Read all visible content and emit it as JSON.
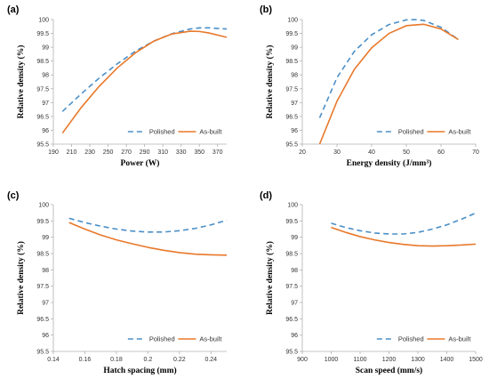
{
  "colors": {
    "polished": "#4a8fc7",
    "as_built": "#e8782a",
    "axis": "#b0b0b0"
  },
  "chart_data": [
    {
      "type": "line",
      "panel_label": "(a)",
      "xlabel": "Power (W)",
      "ylabel": "Relative density (%)",
      "xlim": [
        190,
        380
      ],
      "ylim": [
        95.5,
        100
      ],
      "xticks": [
        190,
        210,
        230,
        250,
        270,
        290,
        310,
        330,
        350,
        370
      ],
      "yticks": [
        95.5,
        96,
        96.5,
        97,
        97.5,
        98,
        98.5,
        99,
        99.5,
        100
      ],
      "ytick_labels": [
        "95.5",
        "96",
        "96.5",
        "97",
        "97.5",
        "98",
        "98.5",
        "99",
        "99.5",
        "100"
      ],
      "legend": {
        "placement": "bottom-right"
      },
      "series": [
        {
          "name": "Polished",
          "style": "dashed",
          "x": [
            200,
            220,
            240,
            260,
            280,
            300,
            320,
            340,
            350,
            360,
            380
          ],
          "y": [
            96.68,
            97.3,
            97.88,
            98.4,
            98.86,
            99.22,
            99.49,
            99.66,
            99.7,
            99.7,
            99.66
          ]
        },
        {
          "name": "As-built",
          "style": "solid",
          "x": [
            200,
            220,
            240,
            260,
            280,
            300,
            320,
            340,
            350,
            360,
            380
          ],
          "y": [
            95.9,
            96.8,
            97.58,
            98.25,
            98.8,
            99.22,
            99.48,
            99.58,
            99.57,
            99.52,
            99.36
          ]
        }
      ]
    },
    {
      "type": "line",
      "panel_label": "(b)",
      "xlabel": "Energy density (J/mm³)",
      "ylabel": "Relative density (%)",
      "xlim": [
        20,
        70
      ],
      "ylim": [
        95.5,
        100
      ],
      "xticks": [
        20,
        30,
        40,
        50,
        60,
        70
      ],
      "yticks": [
        95.5,
        96,
        96.5,
        97,
        97.5,
        98,
        98.5,
        99,
        99.5,
        100
      ],
      "ytick_labels": [
        "95.5",
        "96",
        "96.5",
        "97",
        "97.5",
        "98",
        "98.5",
        "99",
        "99.5",
        "100"
      ],
      "legend": {
        "placement": "bottom-right"
      },
      "series": [
        {
          "name": "Polished",
          "style": "dashed",
          "x": [
            25,
            30,
            35,
            40,
            45,
            50,
            52.5,
            55,
            60,
            65
          ],
          "y": [
            96.45,
            97.9,
            98.85,
            99.45,
            99.82,
            99.99,
            100,
            99.97,
            99.72,
            99.28
          ]
        },
        {
          "name": "As-built",
          "style": "solid",
          "x": [
            25,
            30,
            35,
            40,
            45,
            50,
            55,
            60,
            65
          ],
          "y": [
            95.5,
            97.05,
            98.2,
            98.98,
            99.5,
            99.78,
            99.83,
            99.66,
            99.28
          ]
        }
      ]
    },
    {
      "type": "line",
      "panel_label": "(c)",
      "xlabel": "Hatch spacing (mm)",
      "ylabel": "Relative density (%)",
      "xlim": [
        0.14,
        0.25
      ],
      "ylim": [
        95.5,
        100
      ],
      "xticks": [
        0.14,
        0.16,
        0.18,
        0.2,
        0.22,
        0.24
      ],
      "xtick_labels": [
        "0.14",
        "0.16",
        "0.18",
        "0.2",
        "0.22",
        "0.24"
      ],
      "yticks": [
        95.5,
        96,
        96.5,
        97,
        97.5,
        98,
        98.5,
        99,
        99.5,
        100
      ],
      "ytick_labels": [
        "95.5",
        "96",
        "96.5",
        "97",
        "97.5",
        "98",
        "98.5",
        "99",
        "99.5",
        "100"
      ],
      "legend": {
        "placement": "bottom-right"
      },
      "series": [
        {
          "name": "Polished",
          "style": "dashed",
          "x": [
            0.15,
            0.16,
            0.17,
            0.18,
            0.19,
            0.2,
            0.21,
            0.22,
            0.23,
            0.24,
            0.25
          ],
          "y": [
            99.58,
            99.45,
            99.34,
            99.25,
            99.19,
            99.16,
            99.16,
            99.2,
            99.27,
            99.38,
            99.52
          ]
        },
        {
          "name": "As-built",
          "style": "solid",
          "x": [
            0.15,
            0.16,
            0.17,
            0.18,
            0.19,
            0.2,
            0.21,
            0.22,
            0.23,
            0.24,
            0.25
          ],
          "y": [
            99.45,
            99.25,
            99.07,
            98.92,
            98.8,
            98.69,
            98.6,
            98.53,
            98.48,
            98.46,
            98.45
          ]
        }
      ]
    },
    {
      "type": "line",
      "panel_label": "(d)",
      "xlabel": "Scan speed (mm/s)",
      "ylabel": "Relative density (%)",
      "xlim": [
        900,
        1500
      ],
      "ylim": [
        95.5,
        100
      ],
      "xticks": [
        900,
        1000,
        1100,
        1200,
        1300,
        1400,
        1500
      ],
      "yticks": [
        95.5,
        96,
        96.5,
        97,
        97.5,
        98,
        98.5,
        99,
        99.5,
        100
      ],
      "ytick_labels": [
        "95.5",
        "96",
        "96.5",
        "97",
        "97.5",
        "98",
        "98.5",
        "99",
        "99.5",
        "100"
      ],
      "legend": {
        "placement": "bottom-right"
      },
      "series": [
        {
          "name": "Polished",
          "style": "dashed",
          "x": [
            1000,
            1050,
            1100,
            1150,
            1200,
            1250,
            1300,
            1350,
            1400,
            1450,
            1500
          ],
          "y": [
            99.43,
            99.3,
            99.2,
            99.13,
            99.1,
            99.1,
            99.15,
            99.25,
            99.38,
            99.55,
            99.74
          ]
        },
        {
          "name": "As-built",
          "style": "solid",
          "x": [
            1000,
            1050,
            1100,
            1150,
            1200,
            1250,
            1300,
            1350,
            1400,
            1450,
            1500
          ],
          "y": [
            99.3,
            99.15,
            99.02,
            98.92,
            98.84,
            98.78,
            98.74,
            98.73,
            98.74,
            98.76,
            98.79
          ]
        }
      ]
    }
  ]
}
